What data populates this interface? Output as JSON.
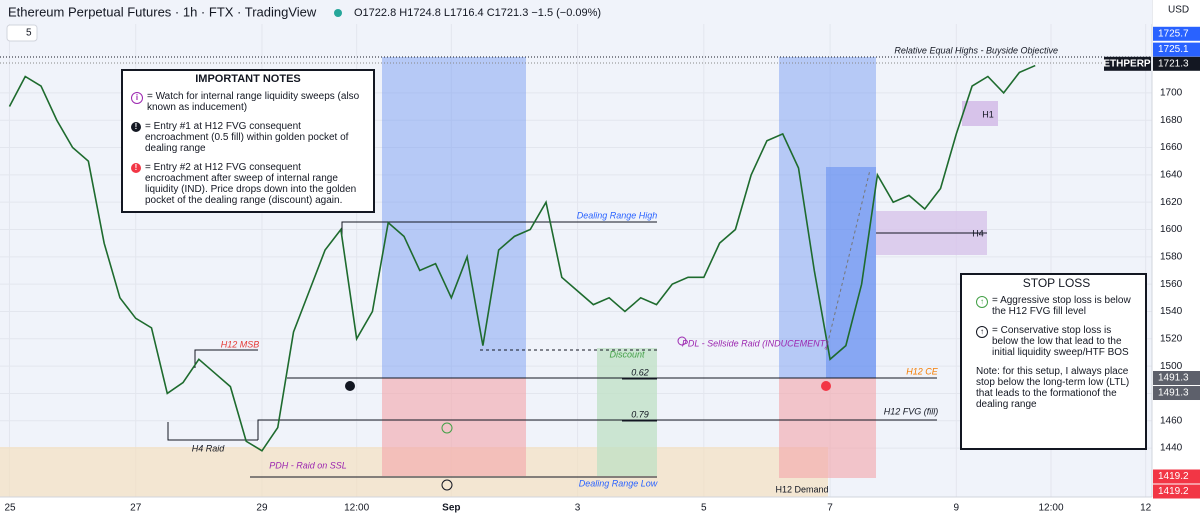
{
  "header": {
    "title": "Ethereum Perpetual Futures · 1h · FTX · TradingView",
    "ohlc": "O1722.8 H1724.8 L1716.4 C1721.3 −1.5 (−0.09%)",
    "indicator": "5",
    "currency": "USD"
  },
  "chart_data": {
    "type": "line",
    "series": [
      {
        "name": "ETHPERP",
        "color": "#1e6b2e",
        "values": [
          1690,
          1712,
          1705,
          1680,
          1660,
          1650,
          1590,
          1550,
          1535,
          1528,
          1480,
          1488,
          1505,
          1495,
          1485,
          1445,
          1438,
          1455,
          1525,
          1555,
          1585,
          1600,
          1520,
          1540,
          1605,
          1595,
          1570,
          1575,
          1550,
          1580,
          1515,
          1585,
          1595,
          1600,
          1620,
          1565,
          1555,
          1545,
          1550,
          1540,
          1550,
          1545,
          1560,
          1565,
          1565,
          1590,
          1600,
          1640,
          1665,
          1670,
          1645,
          1570,
          1505,
          1515,
          1560,
          1640,
          1620,
          1625,
          1615,
          1630,
          1670,
          1705,
          1712,
          1700,
          1715,
          1720
        ]
      }
    ],
    "xlim": [
      -0.6,
      72.4
    ],
    "xticks": [
      {
        "value": 0,
        "label": "25"
      },
      {
        "value": 8,
        "label": "27"
      },
      {
        "value": 16,
        "label": "29"
      },
      {
        "value": 22,
        "label": "12:00"
      },
      {
        "value": 28,
        "label": "Sep"
      },
      {
        "value": 36,
        "label": "3"
      },
      {
        "value": 44,
        "label": "5"
      },
      {
        "value": 52,
        "label": "7"
      },
      {
        "value": 60,
        "label": "9"
      },
      {
        "value": 66,
        "label": "12:00"
      },
      {
        "value": 72,
        "label": "12"
      }
    ],
    "ylim": [
      1402,
      1768
    ],
    "yticks": [
      1440,
      1460,
      1480,
      1500,
      1520,
      1540,
      1560,
      1580,
      1600,
      1620,
      1640,
      1660,
      1680,
      1700
    ],
    "grid": true,
    "price_markers": [
      {
        "value": 1725.7,
        "color": "#2962ff"
      },
      {
        "value": 1725.1,
        "color": "#2962ff"
      },
      {
        "value": 1721.3,
        "color": "#131722"
      },
      {
        "value": 1491.3,
        "color": "#5d606b"
      },
      {
        "value": 1491.3,
        "color": "#5d606b"
      },
      {
        "value": 1419.2,
        "color": "#f23645"
      },
      {
        "value": 1419.2,
        "color": "#f23645"
      }
    ],
    "annotations": [
      "Relative Equal Highs - Buyside Objective",
      "Dealing Range High",
      "H12 MSB",
      "H4 Raid",
      "PDH - Raid on SSL",
      "PDL - Sellside Raid (INDUCEMENT)",
      "Discount",
      "0.62",
      "0.79",
      "H12 CE",
      "H12 FVG (fill)",
      "Dealing Range Low",
      "H12 Demand",
      "H1",
      "H4"
    ]
  },
  "notes": {
    "title": "IMPORTANT NOTES",
    "items": [
      "= Watch for internal range liquidity sweeps (also known as inducement)",
      "= Entry #1 at H12 FVG consequent encroachment (0.5 fill) within golden pocket of dealing range",
      "= Entry #2 at H12 FVG consequent encroachment after sweep of internal range liquidity (IND). Price drops down into the golden pocket of the dealing range (discount) again."
    ]
  },
  "stop_loss": {
    "title": "STOP LOSS",
    "items": [
      "= Aggressive stop loss is below the H12 FVG fill level",
      "= Conservative stop loss is below the low that lead to the initial liquidity sweep/HTF BOS",
      "Note: for this setup, I always place stop below the long-term low (LTL) that leads to the formationof the dealing range"
    ]
  }
}
